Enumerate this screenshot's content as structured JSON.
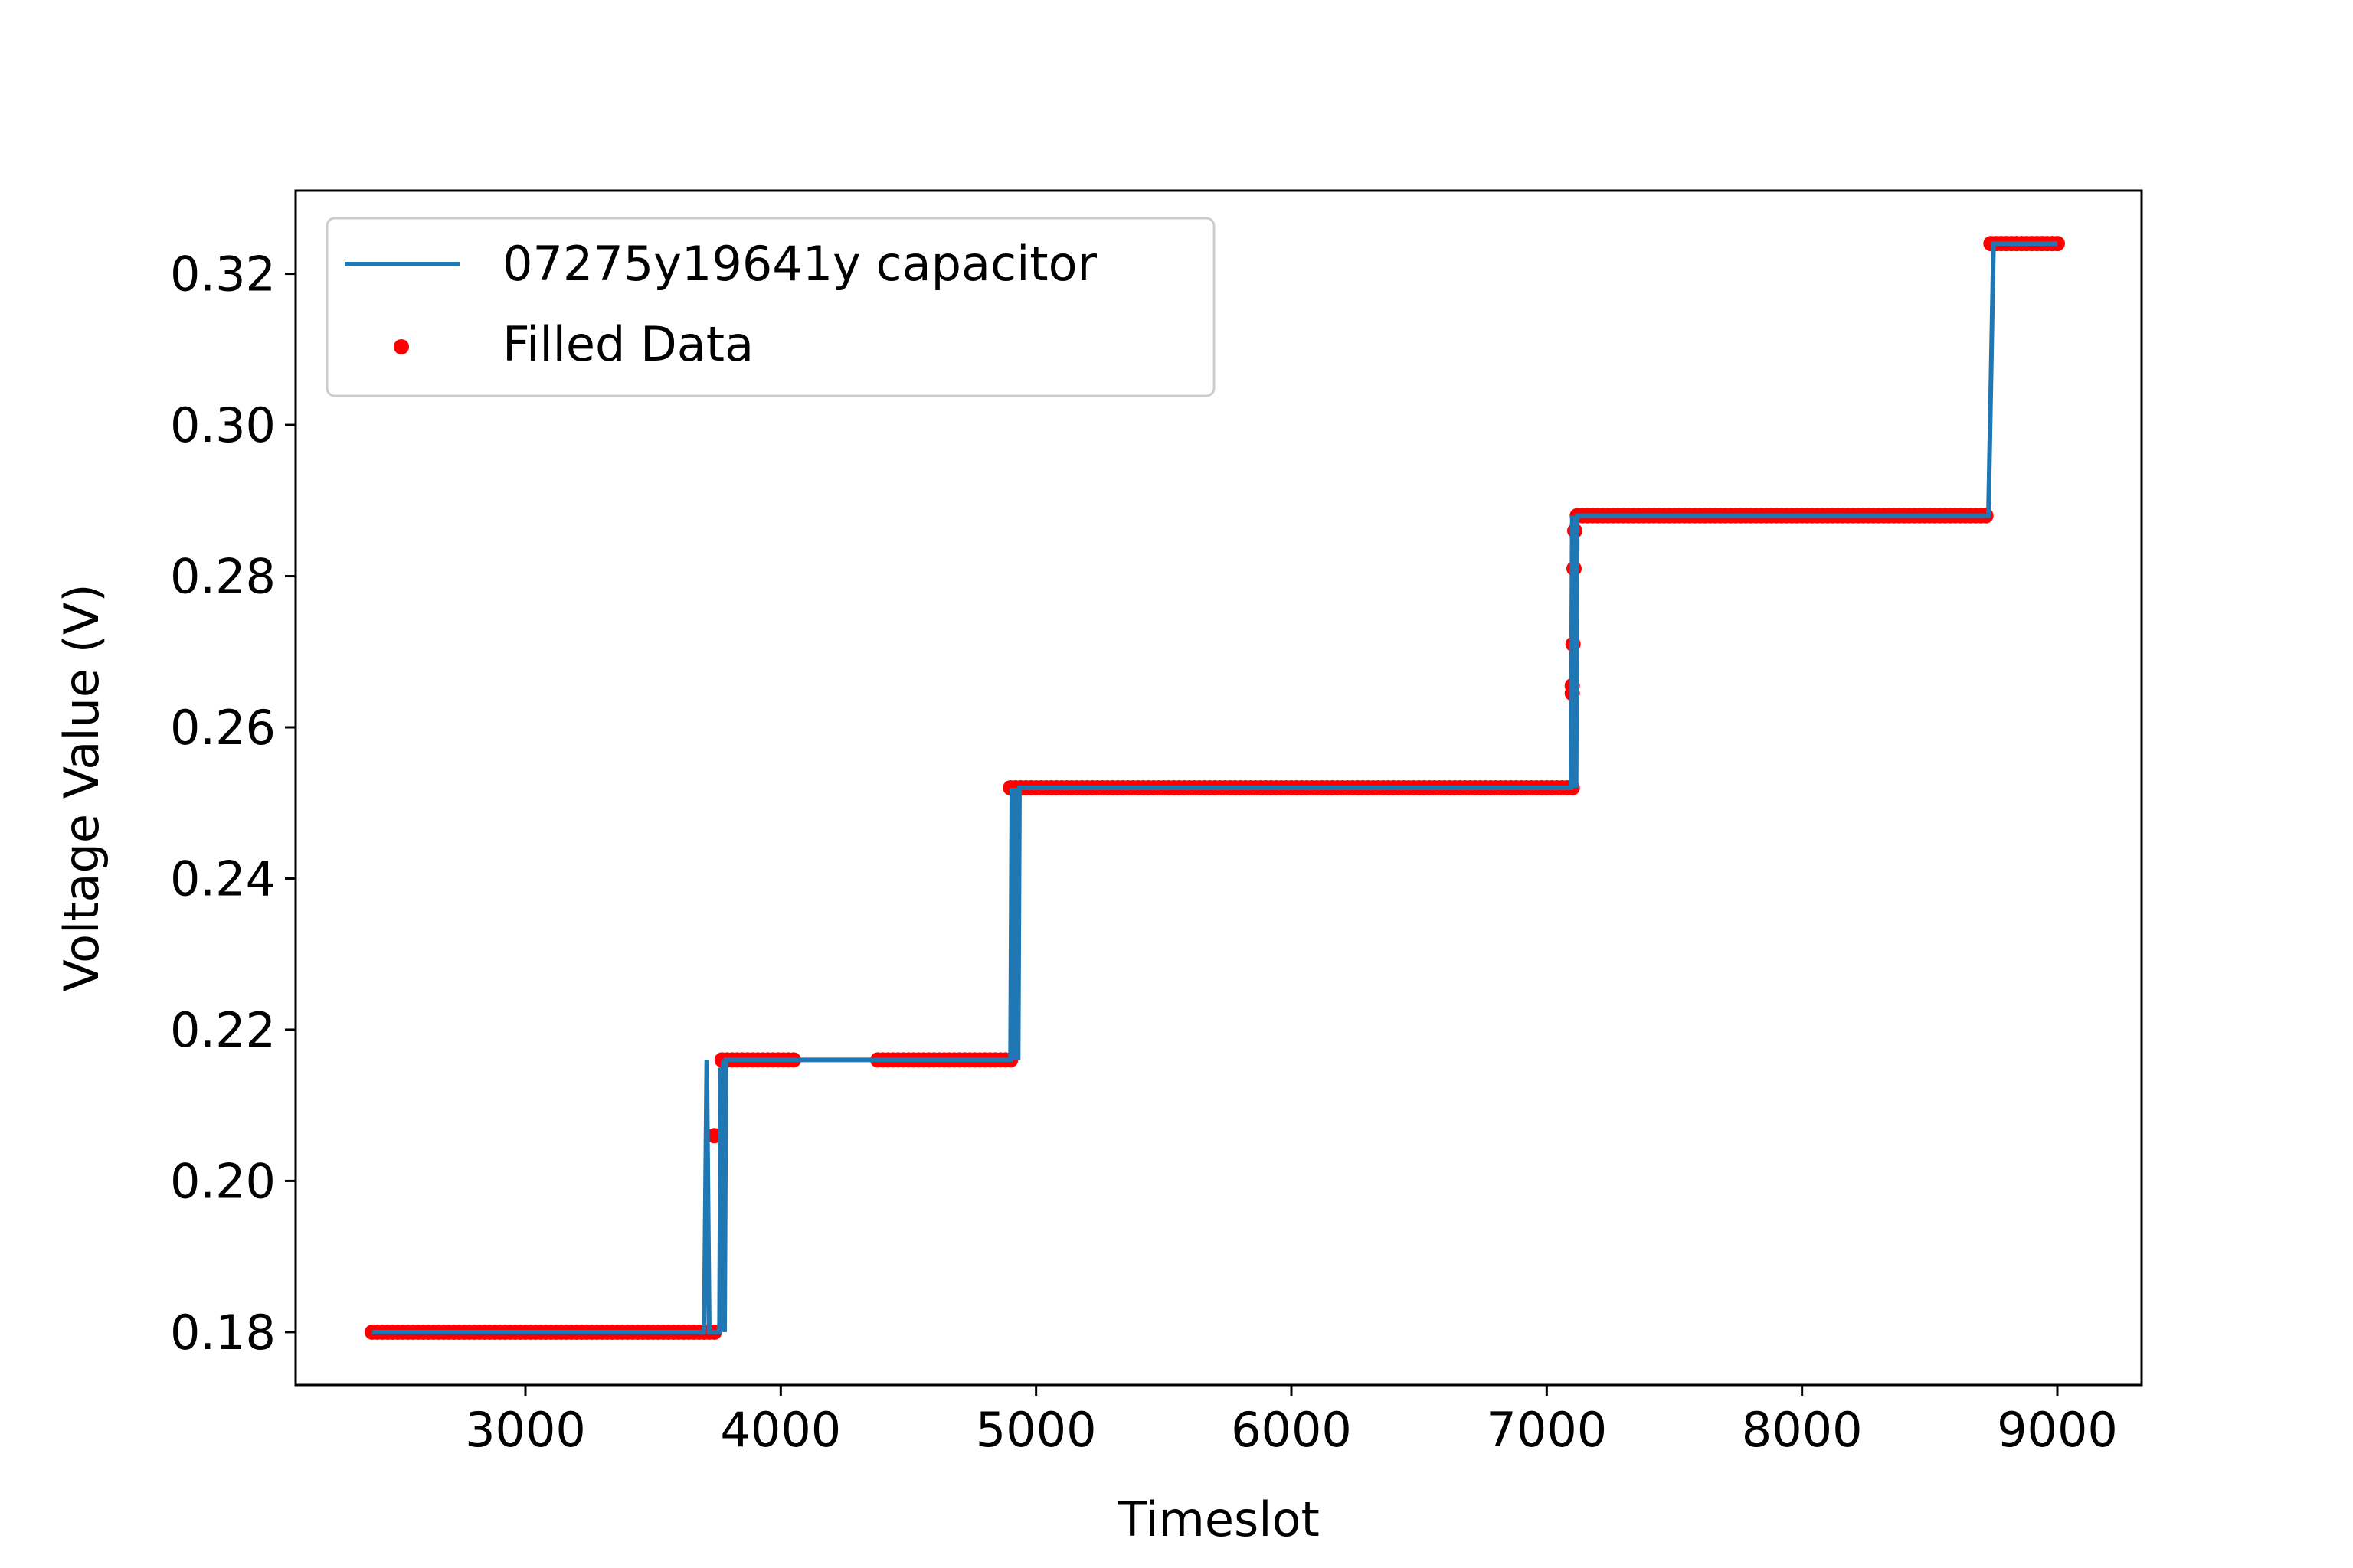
{
  "chart_data": {
    "type": "line",
    "title": "",
    "xlabel": "Timeslot",
    "ylabel": "Voltage Value (V)",
    "xlim": [
      2100,
      9330
    ],
    "ylim": [
      0.173,
      0.331
    ],
    "x_ticks": [
      3000,
      4000,
      5000,
      6000,
      7000,
      8000,
      9000
    ],
    "x_tick_labels": [
      "3000",
      "4000",
      "5000",
      "6000",
      "7000",
      "8000",
      "9000"
    ],
    "y_ticks": [
      0.18,
      0.2,
      0.22,
      0.24,
      0.26,
      0.28,
      0.3,
      0.32
    ],
    "y_tick_labels": [
      "0.18",
      "0.20",
      "0.22",
      "0.24",
      "0.26",
      "0.28",
      "0.30",
      "0.32"
    ],
    "grid": false,
    "legend_position": "upper-left",
    "series": [
      {
        "name": "07275y19641y capacitor",
        "kind": "line",
        "color": "#1f77b4",
        "points": [
          [
            2400,
            0.18
          ],
          [
            3700,
            0.18
          ],
          [
            3710,
            0.216
          ],
          [
            3720,
            0.18
          ],
          [
            3760,
            0.18
          ],
          [
            3765,
            0.215
          ],
          [
            3770,
            0.18
          ],
          [
            3775,
            0.216
          ],
          [
            3780,
            0.18
          ],
          [
            3785,
            0.216
          ],
          [
            3790,
            0.216
          ],
          [
            4900,
            0.216
          ],
          [
            4905,
            0.252
          ],
          [
            4910,
            0.216
          ],
          [
            4915,
            0.252
          ],
          [
            4920,
            0.216
          ],
          [
            4925,
            0.252
          ],
          [
            4930,
            0.216
          ],
          [
            4935,
            0.252
          ],
          [
            7095,
            0.252
          ],
          [
            7100,
            0.288
          ],
          [
            7105,
            0.252
          ],
          [
            7110,
            0.288
          ],
          [
            7115,
            0.252
          ],
          [
            7120,
            0.288
          ],
          [
            7125,
            0.288
          ],
          [
            8730,
            0.288
          ],
          [
            8750,
            0.324
          ],
          [
            9000,
            0.324
          ]
        ]
      },
      {
        "name": "Filled Data",
        "kind": "scatter",
        "color": "#ff0000",
        "segments": [
          {
            "x0": 2400,
            "x1": 3750,
            "y": 0.18
          },
          {
            "x0": 3770,
            "x1": 4060,
            "y": 0.216
          },
          {
            "x0": 4380,
            "x1": 4900,
            "y": 0.216
          },
          {
            "x0": 4900,
            "x1": 7100,
            "y": 0.252
          },
          {
            "x0": 7120,
            "x1": 8730,
            "y": 0.288
          },
          {
            "x0": 8740,
            "x1": 9000,
            "y": 0.324
          }
        ],
        "extra_points": [
          [
            3740,
            0.206
          ],
          [
            7100,
            0.2645
          ],
          [
            7100,
            0.2655
          ],
          [
            7103,
            0.271
          ],
          [
            7107,
            0.281
          ],
          [
            7110,
            0.286
          ]
        ]
      }
    ]
  }
}
